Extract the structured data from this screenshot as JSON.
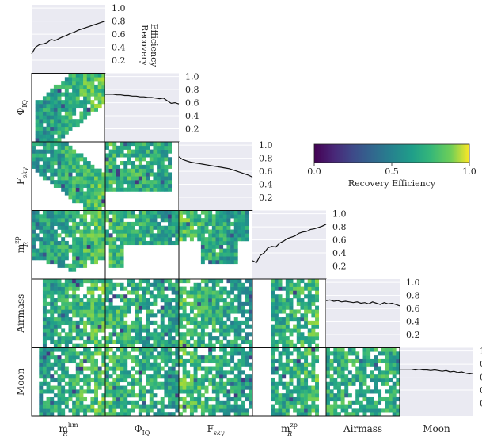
{
  "chart_data": {
    "type": "heatmap",
    "title": "",
    "variables": [
      {
        "key": "mlim",
        "label": "m",
        "sup": "lim",
        "sub": "R"
      },
      {
        "key": "phiiq",
        "label": "Φ",
        "sub": "IQ"
      },
      {
        "key": "fsky",
        "label": "F",
        "sub": "sky"
      },
      {
        "key": "mzp",
        "label": "m",
        "sup": "zp",
        "sub": "R"
      },
      {
        "key": "airmass",
        "label": "Airmass"
      },
      {
        "key": "moon",
        "label": "Moon"
      }
    ],
    "diagonal_ylabel": [
      "Recovery",
      "Efficiency"
    ],
    "diagonal_ylim": [
      0,
      1.05
    ],
    "diagonal_ticks": [
      "1.0",
      "0.8",
      "0.6",
      "0.4",
      "0.2"
    ],
    "diagonal_curves": {
      "mlim": [
        0.3,
        0.4,
        0.44,
        0.45,
        0.47,
        0.52,
        0.5,
        0.53,
        0.56,
        0.58,
        0.61,
        0.63,
        0.66,
        0.68,
        0.7,
        0.72,
        0.74,
        0.76,
        0.78,
        0.8
      ],
      "phiiq": [
        0.73,
        0.73,
        0.73,
        0.72,
        0.72,
        0.71,
        0.71,
        0.7,
        0.7,
        0.69,
        0.69,
        0.68,
        0.68,
        0.67,
        0.66,
        0.67,
        0.63,
        0.59,
        0.6,
        0.58
      ],
      "fsky": [
        0.82,
        0.78,
        0.76,
        0.74,
        0.73,
        0.72,
        0.71,
        0.7,
        0.69,
        0.68,
        0.67,
        0.66,
        0.65,
        0.64,
        0.62,
        0.6,
        0.58,
        0.56,
        0.54,
        0.51
      ],
      "mzp": [
        0.28,
        0.25,
        0.36,
        0.4,
        0.48,
        0.5,
        0.49,
        0.55,
        0.58,
        0.62,
        0.64,
        0.66,
        0.7,
        0.72,
        0.73,
        0.76,
        0.77,
        0.79,
        0.81,
        0.84
      ],
      "airmass": [
        0.72,
        0.73,
        0.71,
        0.72,
        0.7,
        0.71,
        0.7,
        0.69,
        0.7,
        0.68,
        0.69,
        0.67,
        0.7,
        0.68,
        0.66,
        0.69,
        0.67,
        0.68,
        0.66,
        0.64
      ],
      "moon": [
        0.72,
        0.72,
        0.72,
        0.72,
        0.71,
        0.72,
        0.71,
        0.71,
        0.7,
        0.71,
        0.7,
        0.69,
        0.7,
        0.68,
        0.69,
        0.67,
        0.68,
        0.66,
        0.65,
        0.66
      ]
    },
    "heatmap_value_range": [
      0.0,
      1.0
    ],
    "colorbar": {
      "label": "Recovery Efficiency",
      "ticks": [
        "0.0",
        "0.5",
        "1.0"
      ],
      "colormap": "viridis"
    },
    "background_color": "#eaeaf2"
  }
}
